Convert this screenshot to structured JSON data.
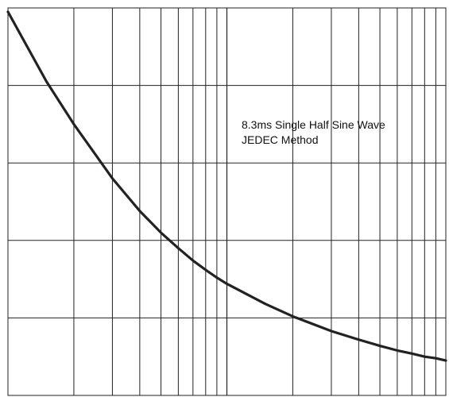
{
  "chart_data": {
    "type": "line",
    "title": "",
    "xlabel": "",
    "ylabel": "",
    "x_scale": "log",
    "x_range": [
      1,
      100
    ],
    "y_range": [
      0,
      5
    ],
    "grid": true,
    "legend": "none",
    "annotations": [
      "8.3ms Single Half Sine Wave",
      "JEDEC Method"
    ],
    "series": [
      {
        "x": [
          1,
          1.5,
          2,
          3,
          4,
          5,
          6,
          7,
          8,
          9,
          10,
          15,
          20,
          30,
          40,
          50,
          60,
          70,
          80,
          90,
          100
        ],
        "y": [
          4.95,
          4.05,
          3.5,
          2.8,
          2.38,
          2.1,
          1.9,
          1.74,
          1.62,
          1.52,
          1.44,
          1.18,
          1.02,
          0.83,
          0.72,
          0.64,
          0.58,
          0.54,
          0.5,
          0.48,
          0.45
        ]
      }
    ],
    "colors": {
      "curve": "#222222",
      "grid": "#222222",
      "background": "#ffffff"
    }
  }
}
